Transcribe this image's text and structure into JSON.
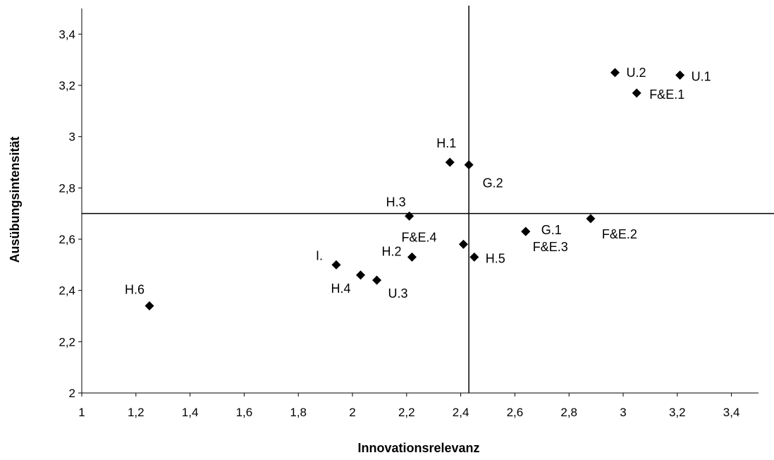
{
  "chart_data": {
    "type": "scatter",
    "title": "",
    "xlabel": "Innovationsrelevanz",
    "ylabel": "Ausübungsintensität",
    "xlim": [
      1,
      3.5
    ],
    "ylim": [
      2,
      3.5
    ],
    "x_ticks": [
      "1",
      "1,2",
      "1,4",
      "1,6",
      "1,8",
      "2",
      "2,2",
      "2,4",
      "2,6",
      "2,8",
      "3",
      "3,2",
      "3,4"
    ],
    "y_ticks": [
      "2",
      "2,2",
      "2,4",
      "2,6",
      "2,8",
      "3",
      "3,2",
      "3,4"
    ],
    "reference_lines": {
      "x": 2.43,
      "y": 2.7
    },
    "grid": false,
    "legend": "none",
    "marker_color": "#000000",
    "points": [
      {
        "label": "U.2",
        "x": 2.97,
        "y": 3.25
      },
      {
        "label": "U.1",
        "x": 3.21,
        "y": 3.24
      },
      {
        "label": "F&E.1",
        "x": 3.05,
        "y": 3.17
      },
      {
        "label": "H.1",
        "x": 2.36,
        "y": 2.9
      },
      {
        "label": "G.2",
        "x": 2.43,
        "y": 2.89
      },
      {
        "label": "H.3",
        "x": 2.21,
        "y": 2.69
      },
      {
        "label": "F&E.2",
        "x": 2.88,
        "y": 2.68
      },
      {
        "label": "G.1",
        "x": 2.64,
        "y": 2.63
      },
      {
        "label": "F&E.3",
        "x": 2.64,
        "y": 2.63
      },
      {
        "label": "F&E.4",
        "x": 2.41,
        "y": 2.58
      },
      {
        "label": "H.2",
        "x": 2.22,
        "y": 2.53
      },
      {
        "label": "H.5",
        "x": 2.45,
        "y": 2.53
      },
      {
        "label": "I.",
        "x": 1.94,
        "y": 2.5
      },
      {
        "label": "H.4",
        "x": 2.03,
        "y": 2.46
      },
      {
        "label": "U.3",
        "x": 2.09,
        "y": 2.44
      },
      {
        "label": "H.6",
        "x": 1.25,
        "y": 2.34
      }
    ]
  }
}
